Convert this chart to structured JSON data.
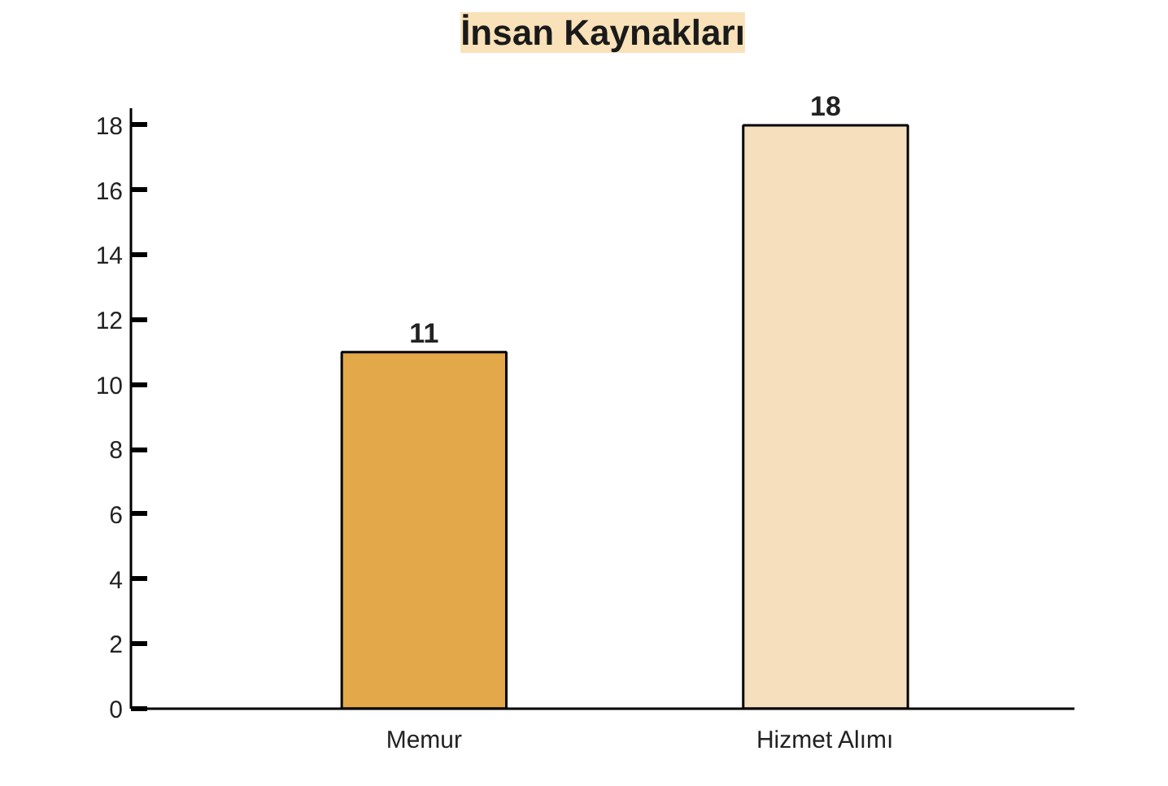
{
  "chart_data": {
    "type": "bar",
    "title": "İnsan Kaynakları",
    "categories": [
      "Memur",
      "Hizmet Alımı"
    ],
    "values": [
      11,
      18
    ],
    "colors": [
      "#e3a84a",
      "#f5dfbd"
    ],
    "ylim": [
      0,
      18.5
    ],
    "yticks": [
      0,
      2,
      4,
      6,
      8,
      10,
      12,
      14,
      16,
      18
    ],
    "data_labels": true
  }
}
